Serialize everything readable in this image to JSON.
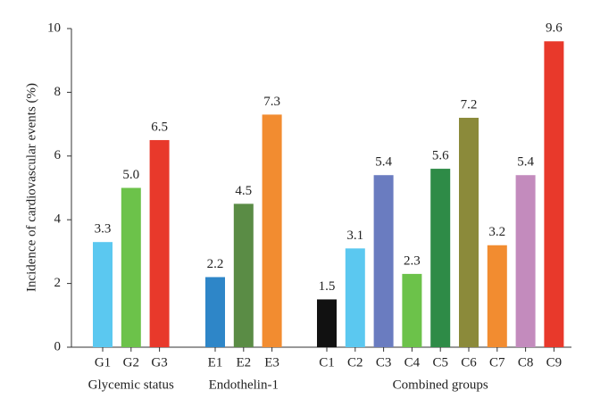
{
  "chart_data": {
    "type": "bar",
    "y_label": "Incidence of cardiovascular events (%)",
    "ylim": [
      0,
      10
    ],
    "yticks": [
      0,
      2,
      4,
      6,
      8,
      10
    ],
    "grid": false,
    "groups": [
      {
        "name": "Glycemic status",
        "categories": [
          "G1",
          "G2",
          "G3"
        ],
        "values": [
          3.3,
          5.0,
          6.5
        ],
        "value_labels": [
          "3.3",
          "5.0",
          "6.5"
        ],
        "colors": [
          "#5bc8f0",
          "#6cc24a",
          "#e8392b"
        ]
      },
      {
        "name": "Endothelin-1",
        "categories": [
          "E1",
          "E2",
          "E3"
        ],
        "values": [
          2.2,
          4.5,
          7.3
        ],
        "value_labels": [
          "2.2",
          "4.5",
          "7.3"
        ],
        "colors": [
          "#2e86c8",
          "#5a8c45",
          "#f28c30"
        ]
      },
      {
        "name": "Combined groups",
        "categories": [
          "C1",
          "C2",
          "C3",
          "C4",
          "C5",
          "C6",
          "C7",
          "C8",
          "C9"
        ],
        "values": [
          1.5,
          3.1,
          5.4,
          2.3,
          5.6,
          7.2,
          3.2,
          5.4,
          9.6
        ],
        "value_labels": [
          "1.5",
          "3.1",
          "5.4",
          "2.3",
          "5.6",
          "7.2",
          "3.2",
          "5.4",
          "9.6"
        ],
        "colors": [
          "#111111",
          "#5bc8f0",
          "#6a7cc0",
          "#6cc24a",
          "#2e8b47",
          "#8b8a3a",
          "#f28c30",
          "#c38bbd",
          "#e8392b"
        ]
      }
    ]
  }
}
